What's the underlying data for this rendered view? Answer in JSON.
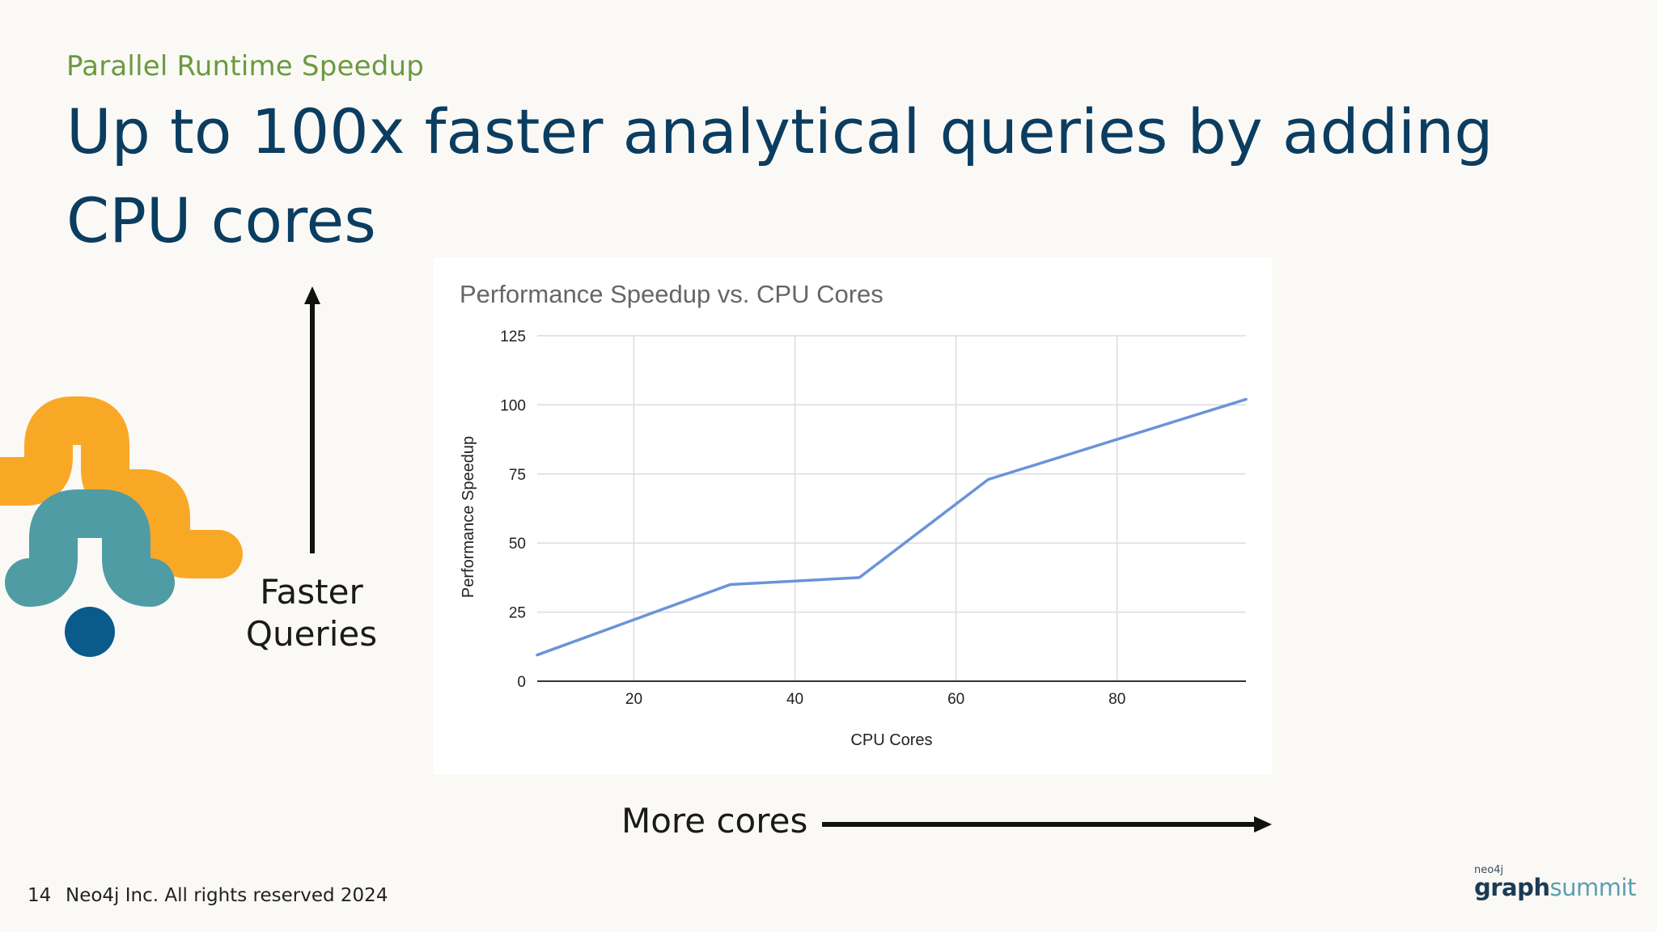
{
  "slide": {
    "eyebrow": "Parallel Runtime Speedup",
    "headline": "Up to 100x faster analytical queries by adding CPU cores",
    "faster_label": "Faster Queries",
    "more_label": "More cores",
    "footer": {
      "page_number": "14",
      "copyright": "Neo4j Inc. All rights reserved 2024"
    },
    "brand": {
      "small": "neo4j",
      "main_a": "graph",
      "main_b": "summit"
    },
    "colors": {
      "eyebrow": "#6a9a3e",
      "headline": "#0b3d60",
      "logo_orange": "#f9a826",
      "logo_teal": "#4f9ca5",
      "logo_blue": "#0b5a8c"
    }
  },
  "chart_data": {
    "type": "line",
    "title": "Performance Speedup vs. CPU Cores",
    "xlabel": "CPU Cores",
    "ylabel": "Performance Speedup",
    "xlim": [
      8,
      96
    ],
    "ylim": [
      0,
      125
    ],
    "xticks": [
      20,
      40,
      60,
      80
    ],
    "yticks": [
      0,
      25,
      50,
      75,
      100,
      125
    ],
    "grid": true,
    "legend": "none",
    "series": [
      {
        "color": "#6a93da",
        "x": [
          8,
          32,
          48,
          64,
          96
        ],
        "y": [
          9.5,
          35,
          37.5,
          73,
          102
        ]
      }
    ]
  }
}
